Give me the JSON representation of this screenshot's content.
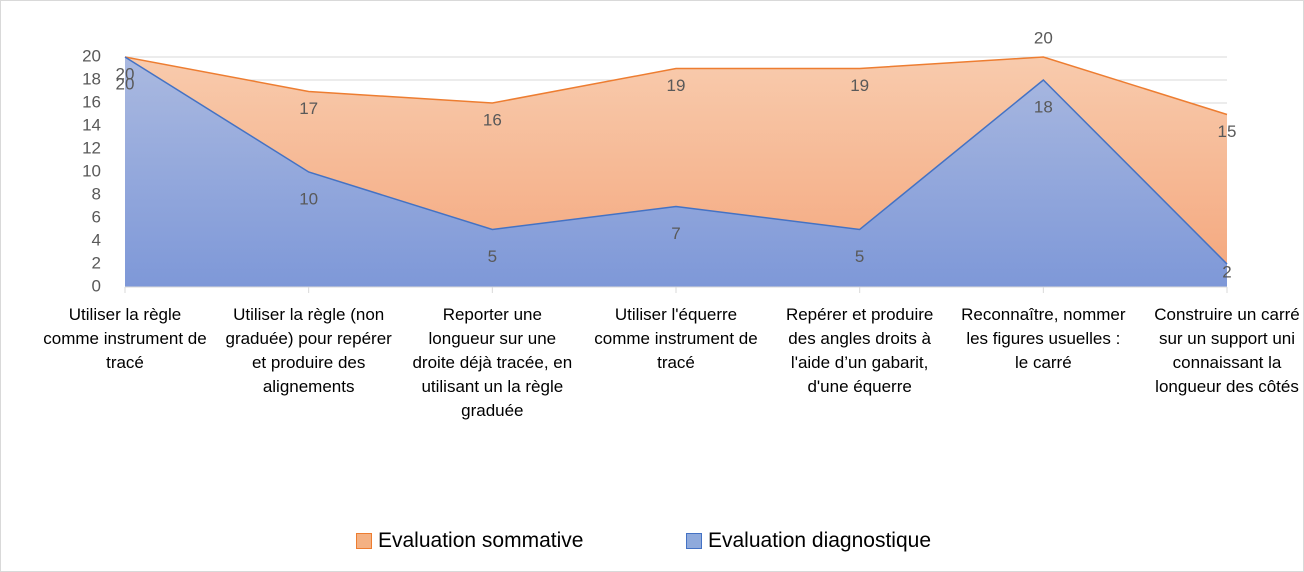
{
  "chart_data": {
    "type": "area",
    "categories": [
      "Utiliser la règle comme instrument de tracé",
      "Utiliser la règle (non graduée) pour repérer et produire des alignements",
      "Reporter une longueur sur une droite déjà tracée, en utilisant un la règle graduée",
      "Utiliser l'équerre comme instrument de tracé",
      "Repérer et produire des angles droits à l'aide d’un gabarit, d'une équerre",
      "Reconnaître, nommer les figures usuelles : le carré",
      "Construire un carré sur un support uni connaissant la longueur des côtés"
    ],
    "series": [
      {
        "name": "Evaluation sommative",
        "color": "#ed7d31",
        "values": [
          20,
          17,
          16,
          19,
          19,
          20,
          15
        ]
      },
      {
        "name": "Evaluation diagnostique",
        "color": "#4472c4",
        "values": [
          20,
          10,
          5,
          7,
          5,
          18,
          2
        ]
      }
    ],
    "ylim": [
      0,
      20
    ],
    "yticks": [
      0,
      2,
      4,
      6,
      8,
      10,
      12,
      14,
      16,
      18,
      20
    ],
    "grid": true,
    "legend": "bottom"
  }
}
